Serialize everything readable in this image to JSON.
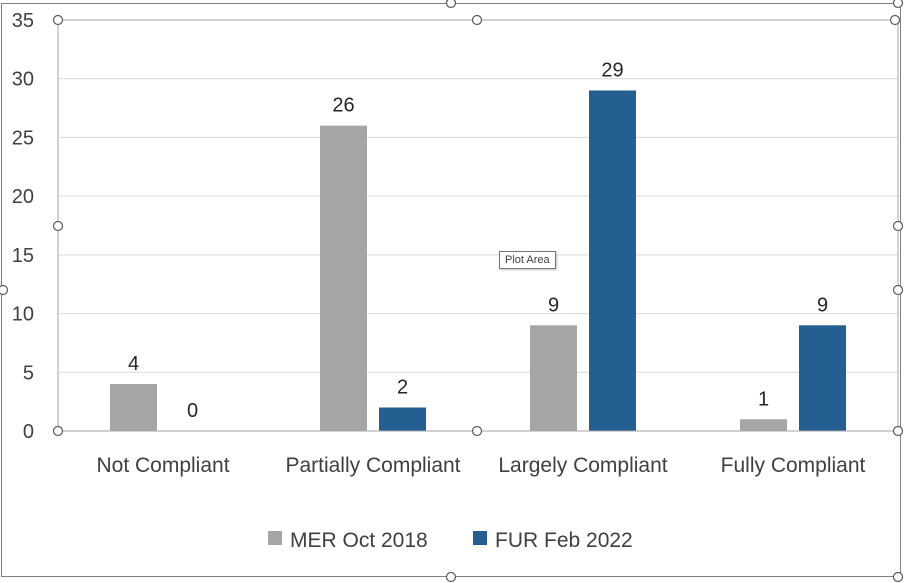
{
  "chart_data": {
    "type": "bar",
    "categories": [
      "Not Compliant",
      "Partially Compliant",
      "Largely Compliant",
      "Fully Compliant"
    ],
    "series": [
      {
        "name": "MER Oct 2018",
        "values": [
          4,
          26,
          9,
          1
        ],
        "color": "#a5a5a5"
      },
      {
        "name": "FUR Feb 2022",
        "values": [
          0,
          2,
          29,
          9
        ],
        "color": "#255e91"
      }
    ],
    "ylim": [
      0,
      35
    ],
    "yticks": [
      0,
      5,
      10,
      15,
      20,
      25,
      30,
      35
    ],
    "grid": true,
    "legend": "bottom",
    "data_labels": true
  },
  "tooltip": "Plot Area",
  "colors": {
    "grid": "#d9d9d9",
    "text": "#404040"
  }
}
